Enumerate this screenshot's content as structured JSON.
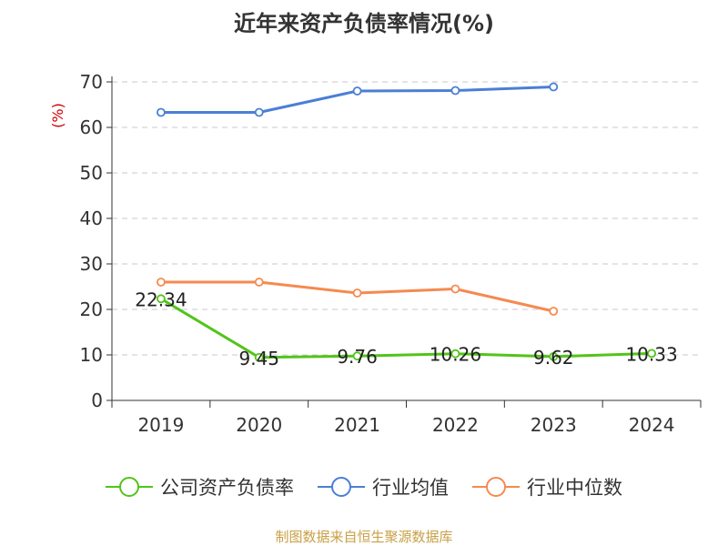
{
  "chart_data": {
    "type": "line",
    "title": "近年来资产负债率情况(%)",
    "ylabel": "(%)",
    "xlabel": "",
    "categories": [
      "2019",
      "2020",
      "2021",
      "2022",
      "2023",
      "2024"
    ],
    "ylim": [
      0,
      70
    ],
    "yticks": [
      0,
      10,
      20,
      30,
      40,
      50,
      60,
      70
    ],
    "grid": true,
    "legend_position": "bottom",
    "series": [
      {
        "name": "公司资产负债率",
        "color": "#52c41a",
        "values": [
          22.34,
          9.45,
          9.76,
          10.26,
          9.62,
          10.33
        ],
        "data_labels": [
          "22.34",
          "9.45",
          "9.76",
          "10.26",
          "9.62",
          "10.33"
        ]
      },
      {
        "name": "行业均值",
        "color": "#4a7fd6",
        "values": [
          63.3,
          63.3,
          68.0,
          68.1,
          68.9,
          null
        ],
        "data_labels": []
      },
      {
        "name": "行业中位数",
        "color": "#f58a50",
        "values": [
          26.0,
          26.0,
          23.6,
          24.5,
          19.6,
          null
        ],
        "data_labels": []
      }
    ]
  },
  "watermark": "制图数据来自恒生聚源数据库"
}
